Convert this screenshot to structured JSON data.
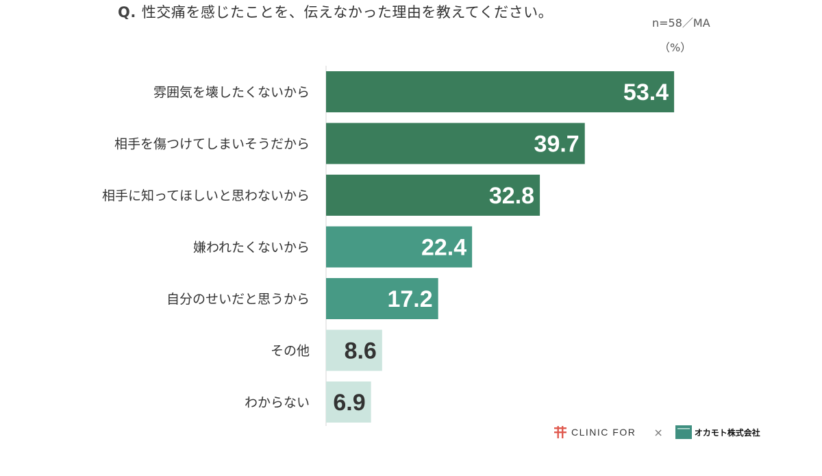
{
  "title": {
    "prefix": "Q.",
    "text": "性交痛を感じたことを、伝えなかった理由を教えてください。"
  },
  "sample_note": "n=58／MA",
  "unit_note": "（%）",
  "logos": {
    "clinic": "CLINIC FOR",
    "times": "×",
    "okamoto": "オカモト株式会社"
  },
  "colors": {
    "dark": "#3a7d5b",
    "mid": "#479a85",
    "light": "#cce5de",
    "label_on_dark": "#ffffff",
    "label_on_light": "#333333"
  },
  "chart_data": {
    "type": "bar",
    "orientation": "horizontal",
    "categories": [
      "雰囲気を壊したくないから",
      "相手を傷つけてしまいそうだから",
      "相手に知ってほしいと思わないから",
      "嫌われたくないから",
      "自分のせいだと思うから",
      "その他",
      "わからない"
    ],
    "values": [
      53.4,
      39.7,
      32.8,
      22.4,
      17.2,
      8.6,
      6.9
    ],
    "tiers": [
      "dark",
      "dark",
      "dark",
      "mid",
      "mid",
      "light",
      "light"
    ],
    "xlim": [
      0,
      60
    ],
    "grid": false,
    "legend": "none"
  }
}
